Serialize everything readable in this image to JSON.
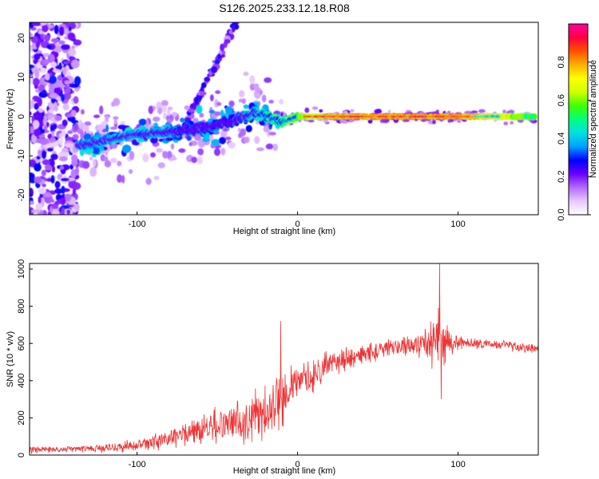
{
  "title": "S126.2025.233.12.18.R08",
  "chart_data": [
    {
      "type": "heatmap",
      "xlabel": "Height of straight line (km)",
      "ylabel": "Frequency (Hz)",
      "xlim": [
        -167,
        150
      ],
      "ylim": [
        -25,
        24
      ],
      "xticks": [
        -100,
        0,
        100
      ],
      "yticks": [
        -20,
        -10,
        0,
        10,
        20
      ],
      "colorbar": {
        "label": "Normalized spectral amplitude",
        "range": [
          0,
          1
        ],
        "ticks": [
          0.0,
          0.2,
          0.4,
          0.6,
          0.8
        ],
        "colors": [
          "#ffffff",
          "#e8c8ff",
          "#b36bff",
          "#6a00ff",
          "#0000ff",
          "#00a0ff",
          "#00e0e0",
          "#00ff80",
          "#40ff00",
          "#d0ff00",
          "#ffff00",
          "#ffb000",
          "#ff5000",
          "#ff0040",
          "#ff00a0"
        ]
      },
      "ridge": {
        "x": [
          -137,
          -120,
          -100,
          -80,
          -60,
          -40,
          -25,
          -10,
          0,
          20,
          60,
          100,
          148
        ],
        "freq": [
          -7.5,
          -6,
          -4.5,
          -4,
          -3,
          -1,
          1,
          -1.5,
          0,
          0,
          0,
          0,
          0
        ],
        "amplitude": [
          0.35,
          0.4,
          0.4,
          0.35,
          0.3,
          0.3,
          0.45,
          0.55,
          0.6,
          0.85,
          0.9,
          0.9,
          0.55
        ]
      }
    },
    {
      "type": "line",
      "xlabel": "Height of straight line (km)",
      "ylabel": "SNR (10 * v/v)",
      "xlim": [
        -167,
        150
      ],
      "ylim": [
        0,
        1030
      ],
      "xticks": [
        -100,
        0,
        100
      ],
      "yticks": [
        0,
        200,
        400,
        600,
        800,
        1000
      ],
      "series": [
        {
          "name": "SNR",
          "color": "#ee3333",
          "x": [
            -167,
            -150,
            -130,
            -110,
            -100,
            -90,
            -80,
            -70,
            -60,
            -50,
            -40,
            -30,
            -20,
            -15,
            -10,
            -5,
            0,
            10,
            20,
            30,
            40,
            50,
            60,
            70,
            80,
            85,
            88,
            90,
            95,
            100,
            110,
            120,
            130,
            140,
            150
          ],
          "y": [
            30,
            28,
            35,
            45,
            50,
            65,
            90,
            120,
            140,
            160,
            175,
            200,
            230,
            260,
            300,
            360,
            380,
            430,
            490,
            520,
            540,
            560,
            580,
            590,
            600,
            600,
            650,
            600,
            610,
            610,
            600,
            595,
            590,
            580,
            575
          ],
          "spread": [
            15,
            12,
            15,
            20,
            25,
            30,
            40,
            50,
            60,
            70,
            80,
            90,
            100,
            110,
            110,
            80,
            70,
            60,
            50,
            45,
            40,
            40,
            40,
            40,
            60,
            100,
            150,
            100,
            50,
            30,
            20,
            20,
            20,
            20,
            20
          ],
          "peaks": [
            {
              "x": -10.5,
              "y": 720
            },
            {
              "x": 88.5,
              "y": 1030
            },
            {
              "x": 89.5,
              "y": 300
            }
          ]
        }
      ]
    }
  ]
}
